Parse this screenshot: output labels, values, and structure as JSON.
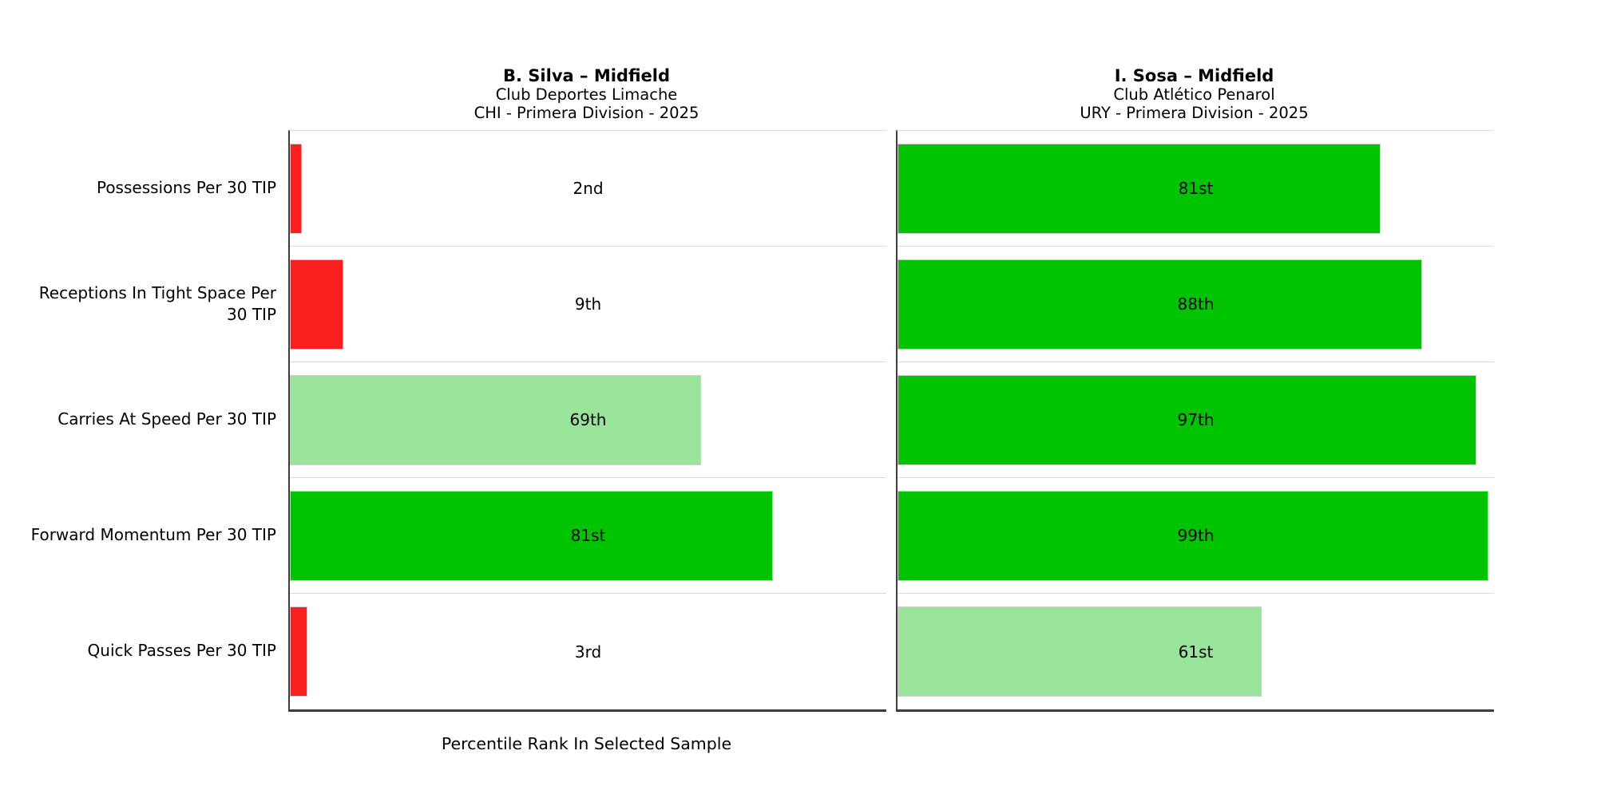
{
  "figure": {
    "xlabel": "Percentile Rank In Selected Sample",
    "accent_colors": {
      "low_red": "#fa1f1f",
      "mid_light_green": "#9ae39a",
      "high_green": "#00c400",
      "separator_gray": "#dcdcdc",
      "spine_dark": "#3d3d3d"
    }
  },
  "chart_data": [
    {
      "type": "bar",
      "orientation": "horizontal",
      "title": "B. Silva – Midfield",
      "subtitle": "Club Deportes Limache",
      "league_line": "CHI - Primera Division - 2025",
      "categories": [
        "Possessions Per 30 TIP",
        "Receptions In Tight Space Per 30 TIP",
        "Carries At Speed Per 30 TIP",
        "Forward Momentum Per 30 TIP",
        "Quick Passes Per 30 TIP"
      ],
      "values": [
        2,
        9,
        69,
        81,
        3
      ],
      "value_labels": [
        "2nd",
        "9th",
        "69th",
        "81st",
        "3rd"
      ],
      "bar_colors": [
        "#fa1f1f",
        "#fa1f1f",
        "#9ae39a",
        "#00c400",
        "#fa1f1f"
      ],
      "xlim": [
        0,
        100
      ],
      "grid": "row-separators",
      "xlabel": "Percentile Rank In Selected Sample"
    },
    {
      "type": "bar",
      "orientation": "horizontal",
      "title": "I. Sosa – Midfield",
      "subtitle": "Club Atlético Penarol",
      "league_line": "URY - Primera Division - 2025",
      "categories": [
        "Possessions Per 30 TIP",
        "Receptions In Tight Space Per 30 TIP",
        "Carries At Speed Per 30 TIP",
        "Forward Momentum Per 30 TIP",
        "Quick Passes Per 30 TIP"
      ],
      "values": [
        81,
        88,
        97,
        99,
        61
      ],
      "value_labels": [
        "81st",
        "88th",
        "97th",
        "99th",
        "61st"
      ],
      "bar_colors": [
        "#00c400",
        "#00c400",
        "#00c400",
        "#00c400",
        "#9ae39a"
      ],
      "xlim": [
        0,
        100
      ],
      "grid": "row-separators",
      "xlabel": ""
    }
  ]
}
